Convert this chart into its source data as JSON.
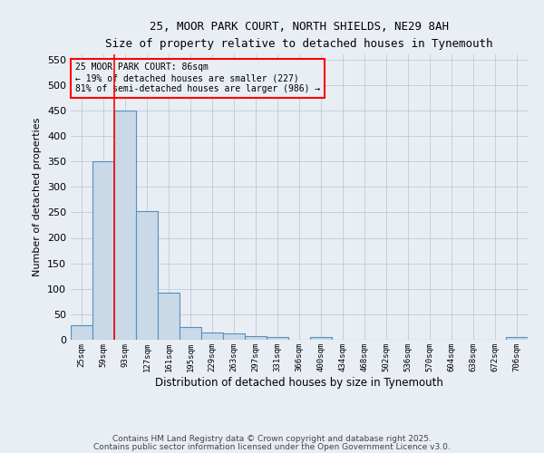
{
  "title_line1": "25, MOOR PARK COURT, NORTH SHIELDS, NE29 8AH",
  "title_line2": "Size of property relative to detached houses in Tynemouth",
  "xlabel": "Distribution of detached houses by size in Tynemouth",
  "ylabel": "Number of detached properties",
  "categories": [
    "25sqm",
    "59sqm",
    "93sqm",
    "127sqm",
    "161sqm",
    "195sqm",
    "229sqm",
    "263sqm",
    "297sqm",
    "331sqm",
    "366sqm",
    "400sqm",
    "434sqm",
    "468sqm",
    "502sqm",
    "536sqm",
    "570sqm",
    "604sqm",
    "638sqm",
    "672sqm",
    "706sqm"
  ],
  "values": [
    28,
    350,
    450,
    253,
    93,
    25,
    15,
    12,
    8,
    6,
    0,
    5,
    0,
    0,
    0,
    0,
    0,
    0,
    0,
    0,
    5
  ],
  "bar_color": "#c9d9e8",
  "bar_edge_color": "#5590b8",
  "red_line_index": 2,
  "ylim": [
    0,
    560
  ],
  "yticks": [
    0,
    50,
    100,
    150,
    200,
    250,
    300,
    350,
    400,
    450,
    500,
    550
  ],
  "annotation_title": "25 MOOR PARK COURT: 86sqm",
  "annotation_line1": "← 19% of detached houses are smaller (227)",
  "annotation_line2": "81% of semi-detached houses are larger (986) →",
  "bg_color": "#e8eef4",
  "footer_line1": "Contains HM Land Registry data © Crown copyright and database right 2025.",
  "footer_line2": "Contains public sector information licensed under the Open Government Licence v3.0."
}
